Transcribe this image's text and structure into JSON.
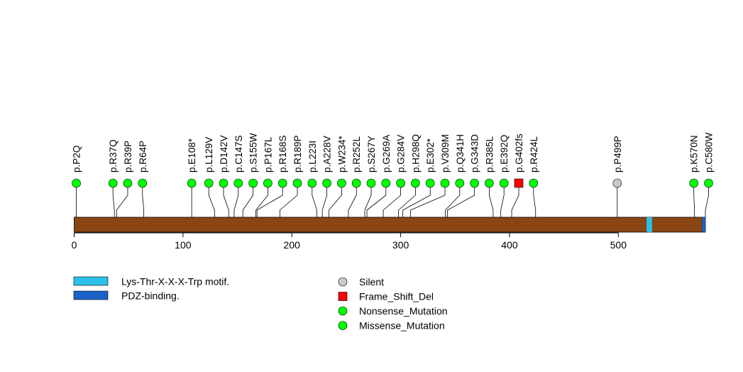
{
  "chart_data": {
    "type": "lollipop",
    "protein_length": 580,
    "axis": {
      "xlim": [
        0,
        580
      ],
      "ticks": [
        0,
        100,
        200,
        300,
        400,
        500
      ]
    },
    "colors": {
      "backbone": "#8B4513",
      "motif": "#2BC1E8",
      "pdz": "#1A62C8",
      "missense": "#00FF00",
      "nonsense": "#00FF00",
      "silent": "#C8C8C8",
      "frameshift": "#FF0000",
      "stem": "#000000"
    },
    "domains": [
      {
        "name": "Lys-Thr-X-X-X-Trp motif.",
        "start": 526,
        "end": 531,
        "color": "#2BC1E8"
      },
      {
        "name": "PDZ-binding.",
        "start": 577,
        "end": 580,
        "color": "#1A62C8"
      }
    ],
    "mutations": [
      {
        "label": "p.P2Q",
        "pos": 2,
        "type": "Missense_Mutation"
      },
      {
        "label": "p.R37Q",
        "pos": 37,
        "type": "Missense_Mutation"
      },
      {
        "label": "p.R39P",
        "pos": 39,
        "type": "Missense_Mutation"
      },
      {
        "label": "p.R64P",
        "pos": 64,
        "type": "Missense_Mutation"
      },
      {
        "label": "p.E108*",
        "pos": 108,
        "type": "Nonsense_Mutation"
      },
      {
        "label": "p.L129V",
        "pos": 129,
        "type": "Missense_Mutation"
      },
      {
        "label": "p.D142V",
        "pos": 142,
        "type": "Missense_Mutation"
      },
      {
        "label": "p.C147S",
        "pos": 147,
        "type": "Missense_Mutation"
      },
      {
        "label": "p.S155W",
        "pos": 155,
        "type": "Missense_Mutation"
      },
      {
        "label": "p.P167L",
        "pos": 167,
        "type": "Missense_Mutation"
      },
      {
        "label": "p.R168S",
        "pos": 168,
        "type": "Missense_Mutation"
      },
      {
        "label": "p.R189P",
        "pos": 189,
        "type": "Missense_Mutation"
      },
      {
        "label": "p.L223I",
        "pos": 223,
        "type": "Missense_Mutation"
      },
      {
        "label": "p.A228V",
        "pos": 228,
        "type": "Missense_Mutation"
      },
      {
        "label": "p.W234*",
        "pos": 234,
        "type": "Nonsense_Mutation"
      },
      {
        "label": "p.R252L",
        "pos": 252,
        "type": "Missense_Mutation"
      },
      {
        "label": "p.S267Y",
        "pos": 267,
        "type": "Missense_Mutation"
      },
      {
        "label": "p.G269A",
        "pos": 269,
        "type": "Missense_Mutation"
      },
      {
        "label": "p.G284V",
        "pos": 284,
        "type": "Missense_Mutation"
      },
      {
        "label": "p.H298Q",
        "pos": 298,
        "type": "Missense_Mutation"
      },
      {
        "label": "p.E302*",
        "pos": 302,
        "type": "Nonsense_Mutation"
      },
      {
        "label": "p.V309M",
        "pos": 309,
        "type": "Missense_Mutation"
      },
      {
        "label": "p.Q341H",
        "pos": 341,
        "type": "Missense_Mutation"
      },
      {
        "label": "p.G343D",
        "pos": 343,
        "type": "Missense_Mutation"
      },
      {
        "label": "p.R385L",
        "pos": 385,
        "type": "Missense_Mutation"
      },
      {
        "label": "p.E392Q",
        "pos": 392,
        "type": "Missense_Mutation"
      },
      {
        "label": "p.G402fs",
        "pos": 402,
        "type": "Frame_Shift_Del"
      },
      {
        "label": "p.R424L",
        "pos": 424,
        "type": "Missense_Mutation"
      },
      {
        "label": "p.P499P",
        "pos": 499,
        "type": "Silent"
      },
      {
        "label": "p.K570N",
        "pos": 570,
        "type": "Missense_Mutation"
      },
      {
        "label": "p.C580W",
        "pos": 580,
        "type": "Missense_Mutation"
      }
    ],
    "legend_domains": [
      {
        "label": "Lys-Thr-X-X-X-Trp motif.",
        "color": "#2BC1E8"
      },
      {
        "label": "PDZ-binding.",
        "color": "#1A62C8"
      }
    ],
    "legend_mutations": [
      {
        "label": "Silent",
        "shape": "circle",
        "color": "#C8C8C8"
      },
      {
        "label": "Frame_Shift_Del",
        "shape": "square",
        "color": "#FF0000"
      },
      {
        "label": "Nonsense_Mutation",
        "shape": "circle",
        "color": "#00FF00"
      },
      {
        "label": "Missense_Mutation",
        "shape": "circle",
        "color": "#00FF00"
      }
    ]
  }
}
